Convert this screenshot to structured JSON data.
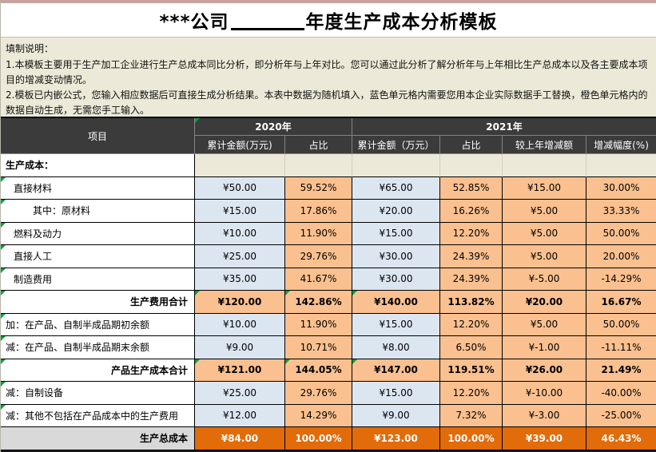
{
  "title": {
    "prefix": "***公司",
    "suffix": "年度生产成本分析模板"
  },
  "instructions": {
    "heading": "填制说明：",
    "items": [
      "1.本模板主要用于生产加工企业进行生产总成本同比分析，即分析年与上年对比。您可以通过此分析了解分析年与上年相比生产总成本以及各主要成本项目的增减变动情况。",
      "2.模板已内嵌公式，您输入相应数据后可直接生成分析结果。本表中数据为随机填入，蓝色单元格内需要您用本企业实际数据手工替换，橙色单元格内的数据自动生成，无需您手工输入。"
    ]
  },
  "colors": {
    "header_bg": "#3b3b3b",
    "manual_input_cell_blue": "#dce6f1",
    "auto_calc_cell_orange": "#fac08f",
    "grand_total_cell_orange": "#e26b0a",
    "grand_total_label_gray": "#d9d9d9",
    "notes_bg_beige": "#ece9d8",
    "indicator_green": "#00a33f"
  },
  "table": {
    "col1_header": "项目",
    "groups": [
      {
        "label": "2020年",
        "indicator": true,
        "cols": [
          "累计金额(万元)",
          "占比"
        ]
      },
      {
        "label": "2021年",
        "indicator": false,
        "cols": [
          "累计金额（万元）",
          "占比",
          "较上年增减额",
          "增减幅度(%)"
        ]
      }
    ],
    "rows": [
      {
        "label": "生产成本：",
        "type": "section",
        "indent": 0,
        "values": [
          "",
          "",
          "",
          "",
          "",
          ""
        ]
      },
      {
        "label": "直接材料",
        "type": "data",
        "indent": 1,
        "values": [
          "¥50.00",
          "59.52%",
          "¥65.00",
          "52.85%",
          "¥15.00",
          "30.00%"
        ]
      },
      {
        "label": "其中：原材料",
        "type": "data",
        "indent": 2,
        "values": [
          "¥15.00",
          "17.86%",
          "¥20.00",
          "16.26%",
          "¥5.00",
          "33.33%"
        ]
      },
      {
        "label": "燃料及动力",
        "type": "data",
        "indent": 1,
        "values": [
          "¥10.00",
          "11.90%",
          "¥15.00",
          "12.20%",
          "¥5.00",
          "50.00%"
        ]
      },
      {
        "label": "直接人工",
        "type": "data",
        "indent": 1,
        "values": [
          "¥25.00",
          "29.76%",
          "¥30.00",
          "24.39%",
          "¥5.00",
          "20.00%"
        ]
      },
      {
        "label": "制造费用",
        "type": "data",
        "indent": 1,
        "values": [
          "¥35.00",
          "41.67%",
          "¥30.00",
          "24.39%",
          "¥-5.00",
          "-14.29%"
        ]
      },
      {
        "label": "生产费用合计",
        "type": "total",
        "indent": 0,
        "values": [
          "¥120.00",
          "142.86%",
          "¥140.00",
          "113.82%",
          "¥20.00",
          "16.67%"
        ]
      },
      {
        "label": "加：在产品、自制半成品期初余额",
        "type": "data",
        "indent": 0,
        "values": [
          "¥10.00",
          "11.90%",
          "¥15.00",
          "12.20%",
          "¥5.00",
          "50.00%"
        ]
      },
      {
        "label": "减：在产品、自制半成品期末余额",
        "type": "data",
        "indent": 0,
        "values": [
          "¥9.00",
          "10.71%",
          "¥8.00",
          "6.50%",
          "¥-1.00",
          "-11.11%"
        ]
      },
      {
        "label": "产品生产成本合计",
        "type": "total",
        "indent": 0,
        "values": [
          "¥121.00",
          "144.05%",
          "¥147.00",
          "119.51%",
          "¥26.00",
          "21.49%"
        ]
      },
      {
        "label": "减：自制设备",
        "type": "data",
        "indent": 0,
        "values": [
          "¥25.00",
          "29.76%",
          "¥15.00",
          "12.20%",
          "¥-10.00",
          "-40.00%"
        ]
      },
      {
        "label": "减：其他不包括在产品成本中的生产费用",
        "type": "data",
        "indent": 0,
        "values": [
          "¥12.00",
          "14.29%",
          "¥9.00",
          "7.32%",
          "¥-3.00",
          "-25.00%"
        ]
      },
      {
        "label": "生产总成本",
        "type": "grand",
        "indent": 0,
        "values": [
          "¥84.00",
          "100.00%",
          "¥123.00",
          "100.00%",
          "¥39.00",
          "46.43%"
        ]
      }
    ]
  }
}
